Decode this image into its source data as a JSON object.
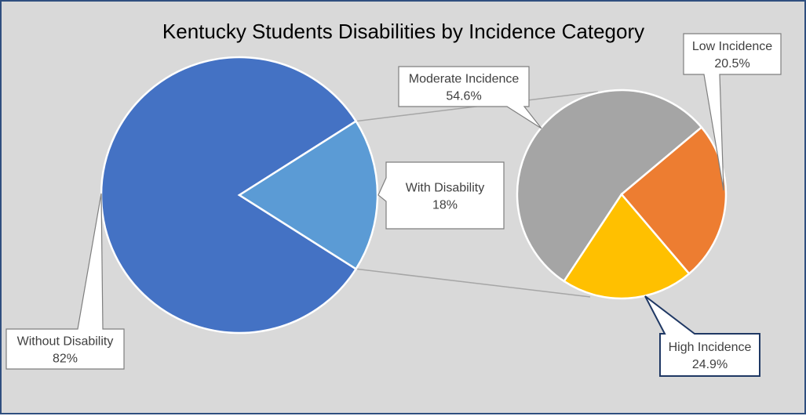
{
  "chart_data": {
    "type": "pie",
    "subtype": "pie-of-pie",
    "title": "Kentucky Students Disabilities by Incidence Category",
    "main_pie": {
      "slices": [
        {
          "name": "Without Disability",
          "value": 82,
          "label": "Without Disability",
          "value_label": "82%",
          "color": "#4472c4"
        },
        {
          "name": "With Disability",
          "value": 18,
          "label": "With Disability",
          "value_label": "18%",
          "color": "#5b9bd5"
        }
      ]
    },
    "breakout_pie": {
      "parent": "With Disability",
      "slices": [
        {
          "name": "Moderate Incidence",
          "value": 54.6,
          "label": "Moderate Incidence",
          "value_label": "54.6%",
          "color": "#a5a5a5"
        },
        {
          "name": "Low Incidence",
          "value": 20.5,
          "label": "Low Incidence",
          "value_label": "20.5%",
          "color": "#ffc000"
        },
        {
          "name": "High Incidence",
          "value": 24.9,
          "label": "High Incidence",
          "value_label": "24.9%",
          "color": "#ed7d31"
        }
      ]
    },
    "legend": "none"
  },
  "colors": {
    "background": "#d9d9d9",
    "frame_border": "#2f4f7f",
    "connector_line": "#a6a6a6",
    "slice_border": "#ffffff",
    "callout_border": "#7f7f7f",
    "callout_highlight_border": "#1f3864"
  }
}
